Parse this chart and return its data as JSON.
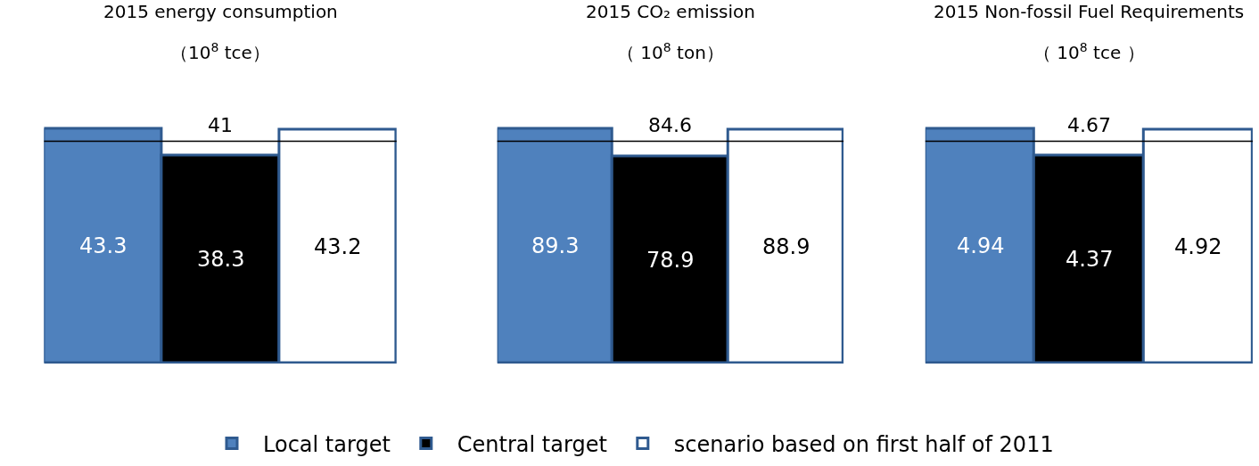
{
  "chart_data": [
    {
      "type": "bar",
      "title": "2015 energy consumption",
      "subtitle": "（10$^{8}$ tce）",
      "categories": [
        null
      ],
      "series": [
        {
          "name": "Local target",
          "color": "#4f81bd",
          "values": [
            43.3
          ]
        },
        {
          "name": "Central target",
          "color": "#000000",
          "values": [
            38.3
          ]
        },
        {
          "name": "scenario based on first half of 2011",
          "color": "#ffffff",
          "values": [
            43.2
          ]
        }
      ],
      "data_labels": true,
      "legend": "bottom",
      "ref_lines": [
        {
          "axis": "y",
          "value": 41,
          "label": "41",
          "color": "#000000"
        }
      ]
    },
    {
      "type": "bar",
      "title": "2015 CO₂ emission",
      "subtitle": "（ 10$^{8}$ ton）",
      "categories": [
        null
      ],
      "series": [
        {
          "color": "#4f81bd",
          "values": [
            89.3
          ]
        },
        {
          "color": "#000000",
          "values": [
            78.9
          ]
        },
        {
          "color": "#ffffff",
          "values": [
            88.9
          ]
        }
      ],
      "data_labels": true,
      "ref_lines": [
        {
          "axis": "y",
          "value": 84.6,
          "label": "84.6",
          "color": "#000000"
        }
      ]
    },
    {
      "type": "bar",
      "title": "2015 Non-fossil Fuel Requirements",
      "subtitle": "（ 10$^{8}$ tce ）",
      "categories": [
        null
      ],
      "series": [
        {
          "color": "#4f81bd",
          "values": [
            4.94
          ]
        },
        {
          "color": "#000000",
          "values": [
            4.37
          ]
        },
        {
          "color": "#ffffff",
          "values": [
            4.92
          ]
        }
      ],
      "data_labels": true,
      "ref_lines": [
        {
          "axis": "y",
          "value": 4.67,
          "label": "4.67",
          "color": "#000000"
        }
      ]
    }
  ]
}
